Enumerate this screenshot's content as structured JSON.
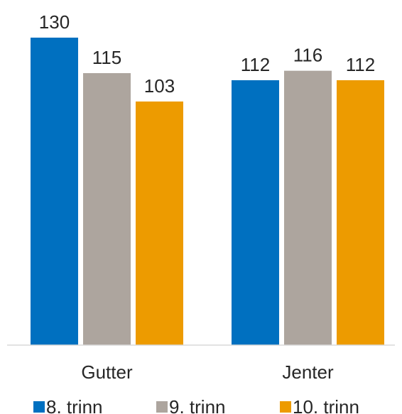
{
  "chart_data": {
    "type": "bar",
    "categories": [
      "Gutter",
      "Jenter"
    ],
    "series": [
      {
        "name": "8. trinn",
        "values": [
          130,
          112
        ],
        "color": "#0070C0"
      },
      {
        "name": "9. trinn",
        "values": [
          115,
          116
        ],
        "color": "#ADA59E"
      },
      {
        "name": "10. trinn",
        "values": [
          103,
          112
        ],
        "color": "#ED9B00"
      }
    ],
    "ylim": [
      0,
      135
    ],
    "data_labels": true,
    "grid": false,
    "legend_position": "bottom",
    "title": "",
    "xlabel": "",
    "ylabel": ""
  }
}
